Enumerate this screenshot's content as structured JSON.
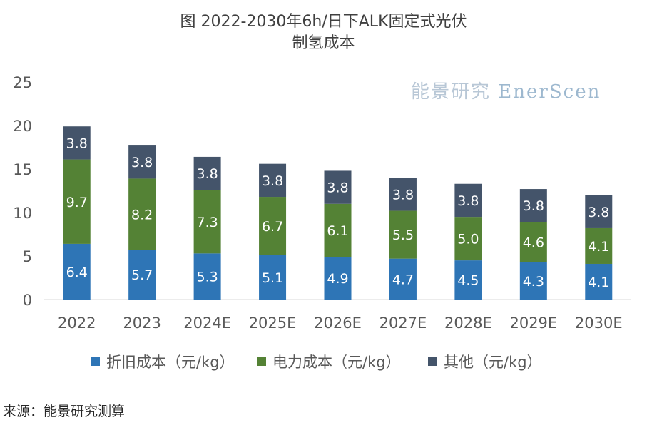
{
  "chart_data": {
    "type": "bar",
    "stacked": true,
    "title_line1": "图  2022-2030年6h/日下ALK固定式光伏",
    "title_line2": "制氢成本",
    "categories": [
      "2022",
      "2023",
      "2024E",
      "2025E",
      "2026E",
      "2027E",
      "2028E",
      "2029E",
      "2030E"
    ],
    "series": [
      {
        "name": "折旧成本（元/kg）",
        "color": "#2e75b6",
        "values": [
          6.4,
          5.7,
          5.3,
          5.1,
          4.9,
          4.7,
          4.5,
          4.3,
          4.1
        ]
      },
      {
        "name": "电力成本（元/kg）",
        "color": "#548235",
        "values": [
          9.7,
          8.2,
          7.3,
          6.7,
          6.1,
          5.5,
          5.0,
          4.6,
          4.1
        ]
      },
      {
        "name": "其他（元/kg）",
        "color": "#44546a",
        "values": [
          3.8,
          3.8,
          3.8,
          3.8,
          3.8,
          3.8,
          3.8,
          3.8,
          3.8
        ]
      }
    ],
    "yticks": [
      "0",
      "5",
      "10",
      "15",
      "20",
      "25"
    ],
    "ylim": [
      0,
      25
    ],
    "grid": false,
    "legend_position": "bottom"
  },
  "watermark": {
    "cn": "能景研究",
    "en": "EnerScen"
  },
  "source": "来源：能景研究测算"
}
